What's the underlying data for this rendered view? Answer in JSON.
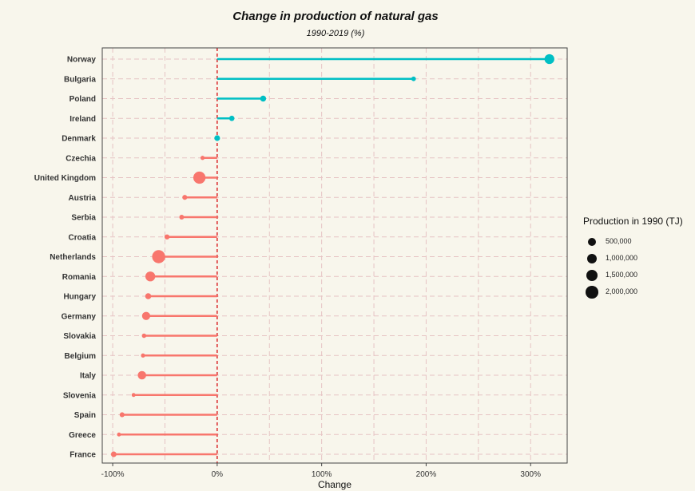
{
  "chart_data": {
    "type": "lollipop",
    "title": "Change in production of natural gas",
    "subtitle": "1990-2019 (%)",
    "xlabel": "Change",
    "ylabel": "",
    "xlim": [
      -110,
      335
    ],
    "x_ticks": [
      -100,
      0,
      100,
      200,
      300
    ],
    "x_tick_labels": [
      "-100%",
      "0%",
      "100%",
      "200%",
      "300%"
    ],
    "reference_line": 0,
    "grid": true,
    "colors": {
      "positive": "#00bfc4",
      "negative": "#f8766d",
      "reference": "#d7191c"
    },
    "legend": {
      "title": "Production in 1990 (TJ)",
      "placement": "right",
      "sizes": [
        500000,
        1000000,
        1500000,
        2000000
      ],
      "labels": [
        "500,000",
        "1,000,000",
        "1,500,000",
        "2,000,000"
      ]
    },
    "categories": [
      "Norway",
      "Bulgaria",
      "Poland",
      "Ireland",
      "Denmark",
      "Czechia",
      "United Kingdom",
      "Austria",
      "Serbia",
      "Croatia",
      "Netherlands",
      "Romania",
      "Hungary",
      "Germany",
      "Slovakia",
      "Belgium",
      "Italy",
      "Slovenia",
      "Spain",
      "Greece",
      "France"
    ],
    "values": [
      318,
      188,
      44,
      14,
      0,
      -14,
      -17,
      -31,
      -34,
      -48,
      -56,
      -64,
      -66,
      -68,
      -70,
      -71,
      -72,
      -80,
      -91,
      -94,
      -99
    ],
    "production_1990": [
      1000000,
      30000,
      150000,
      80000,
      120000,
      10000,
      1900000,
      50000,
      40000,
      60000,
      2300000,
      1000000,
      160000,
      550000,
      20000,
      10000,
      600000,
      5000,
      50000,
      5000,
      100000
    ]
  }
}
